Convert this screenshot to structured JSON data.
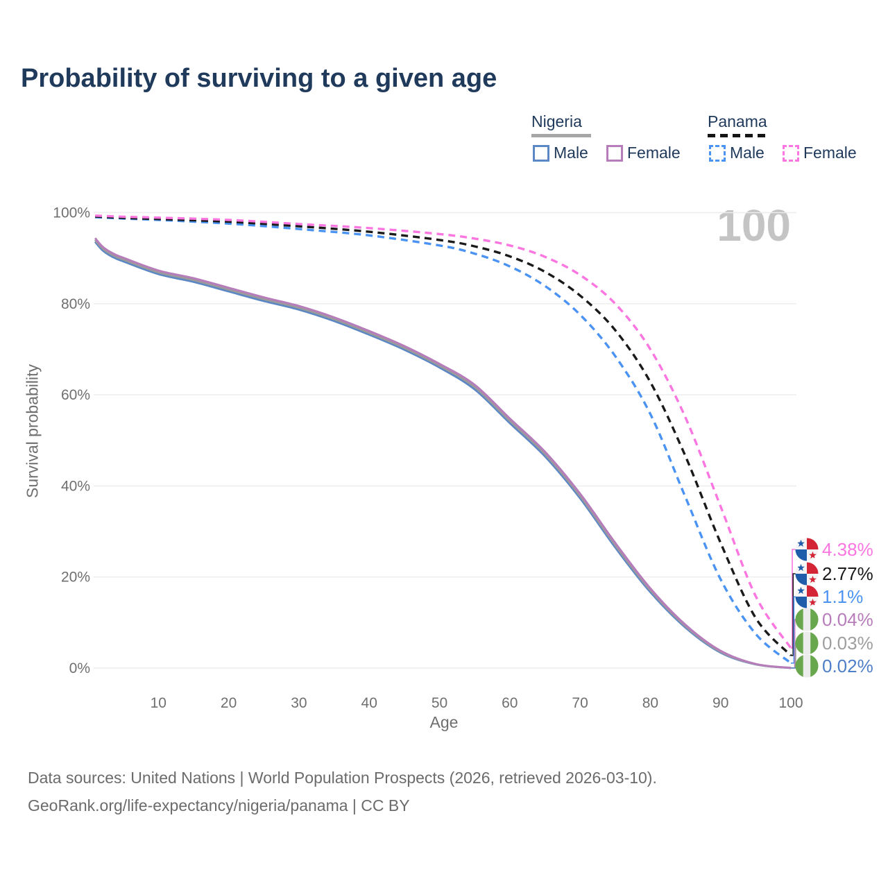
{
  "page": {
    "title": "Probability of surviving to a given age"
  },
  "legend": {
    "groups": [
      {
        "country": "Nigeria",
        "line_style": "solid",
        "items": [
          {
            "label": "Male",
            "series": "nigeria_male"
          },
          {
            "label": "Female",
            "series": "nigeria_female"
          }
        ]
      },
      {
        "country": "Panama",
        "line_style": "dashed",
        "items": [
          {
            "label": "Male",
            "series": "panama_male"
          },
          {
            "label": "Female",
            "series": "panama_female"
          }
        ]
      }
    ]
  },
  "watermark": "100",
  "axes": {
    "y_title": "Survival probability",
    "x_title": "Age",
    "y_tick_values": [
      0,
      20,
      40,
      60,
      80,
      100
    ],
    "y_tick_labels": [
      "0%",
      "20%",
      "40%",
      "60%",
      "80%",
      "100%"
    ],
    "x_tick_values": [
      10,
      20,
      30,
      40,
      50,
      60,
      70,
      80,
      90,
      100
    ]
  },
  "chart_data": {
    "type": "line",
    "title": "Probability of surviving to a given age",
    "xlabel": "Age",
    "ylabel": "Survival probability",
    "xlim": [
      1,
      100
    ],
    "ylim": [
      0,
      100
    ],
    "grid": "horizontal",
    "series": [
      {
        "id": "panama_female",
        "country": "Panama",
        "sex": "Female",
        "dash": "dashed",
        "color": "#fb76e0",
        "x": [
          1,
          5,
          10,
          20,
          30,
          40,
          50,
          55,
          60,
          65,
          70,
          75,
          80,
          85,
          90,
          95,
          100
        ],
        "values": [
          99.35,
          99.1,
          98.9,
          98.4,
          97.5,
          96.6,
          95.3,
          94.3,
          92.8,
          90.3,
          86.3,
          80.0,
          70.0,
          55.0,
          35.5,
          15.8,
          4.38
        ]
      },
      {
        "id": "panama_both",
        "country": "Panama",
        "sex": "Both sexes",
        "dash": "dashed",
        "color": "#1a1a1a",
        "x": [
          1,
          5,
          10,
          20,
          30,
          40,
          50,
          55,
          60,
          65,
          70,
          75,
          80,
          85,
          90,
          95,
          100
        ],
        "values": [
          99.15,
          98.85,
          98.6,
          98.0,
          97.0,
          95.8,
          94.0,
          92.6,
          90.4,
          87.0,
          81.8,
          74.2,
          62.8,
          46.5,
          27.5,
          11.0,
          2.77
        ]
      },
      {
        "id": "panama_male",
        "country": "Panama",
        "sex": "Male",
        "dash": "dashed",
        "color": "#4b93f3",
        "x": [
          1,
          5,
          10,
          20,
          30,
          40,
          50,
          55,
          60,
          65,
          70,
          75,
          80,
          85,
          90,
          95,
          100
        ],
        "values": [
          99.0,
          98.7,
          98.4,
          97.6,
          96.4,
          95.0,
          92.8,
          91.0,
          88.2,
          83.9,
          77.6,
          68.5,
          55.8,
          37.5,
          19.5,
          7.5,
          1.1
        ]
      },
      {
        "id": "nigeria_female",
        "country": "Nigeria",
        "sex": "Female",
        "dash": "solid",
        "color": "#b77cba",
        "x": [
          1,
          2,
          3,
          4,
          5,
          10,
          15,
          20,
          25,
          30,
          35,
          40,
          45,
          50,
          55,
          60,
          65,
          70,
          75,
          80,
          85,
          90,
          95,
          100
        ],
        "values": [
          94.4,
          92.6,
          91.5,
          90.7,
          90.1,
          87.3,
          85.6,
          83.5,
          81.4,
          79.5,
          77.0,
          74.0,
          70.7,
          66.8,
          62.2,
          54.8,
          47.5,
          38.3,
          27.5,
          17.5,
          9.5,
          3.8,
          0.9,
          0.04
        ]
      },
      {
        "id": "nigeria_both",
        "country": "Nigeria",
        "sex": "Both sexes",
        "dash": "solid",
        "color": "#9b9b9b",
        "x": [
          1,
          2,
          3,
          4,
          5,
          10,
          15,
          20,
          25,
          30,
          35,
          40,
          45,
          50,
          55,
          60,
          65,
          70,
          75,
          80,
          85,
          90,
          95,
          100
        ],
        "values": [
          94.0,
          92.2,
          91.1,
          90.3,
          89.7,
          86.9,
          85.2,
          83.1,
          81.0,
          79.1,
          76.6,
          73.6,
          70.3,
          66.4,
          61.7,
          54.3,
          47.0,
          37.8,
          27.0,
          17.1,
          9.2,
          3.6,
          0.85,
          0.03
        ]
      },
      {
        "id": "nigeria_male",
        "country": "Nigeria",
        "sex": "Male",
        "dash": "solid",
        "color": "#5b87c5",
        "x": [
          1,
          2,
          3,
          4,
          5,
          10,
          15,
          20,
          25,
          30,
          35,
          40,
          45,
          50,
          55,
          60,
          65,
          70,
          75,
          80,
          85,
          90,
          95,
          100
        ],
        "values": [
          93.6,
          91.8,
          90.7,
          89.9,
          89.3,
          86.5,
          84.8,
          82.7,
          80.6,
          78.7,
          76.2,
          73.2,
          69.9,
          66.0,
          61.2,
          53.8,
          46.5,
          37.3,
          26.5,
          16.7,
          8.9,
          3.4,
          0.8,
          0.02
        ]
      }
    ],
    "end_labels": [
      {
        "series": "panama_female",
        "flag": "panama",
        "value": "4.38%",
        "color": "#fb76e0"
      },
      {
        "series": "panama_both",
        "flag": "panama",
        "value": "2.77%",
        "color": "#1a1a1a"
      },
      {
        "series": "panama_male",
        "flag": "panama",
        "value": "1.1%",
        "color": "#4b93f3"
      },
      {
        "series": "nigeria_female",
        "flag": "nigeria",
        "value": "0.04%",
        "color": "#b77cba"
      },
      {
        "series": "nigeria_both",
        "flag": "nigeria",
        "value": "0.03%",
        "color": "#9e9e9e"
      },
      {
        "series": "nigeria_male",
        "flag": "nigeria",
        "value": "0.02%",
        "color": "#4f7ec9"
      }
    ]
  },
  "footer": {
    "line1": "Data sources: United Nations | World Population Prospects (2026, retrieved 2026-03-10).",
    "line2": "GeoRank.org/life-expectancy/nigeria/panama | CC BY"
  },
  "colors": {
    "title": "#203a5c",
    "legend_text": "#203a5c",
    "nigeria_underline": "#a6a6a6",
    "panama_underline": "#151515",
    "axis_text": "#6f6f6f",
    "grid": "#ececec",
    "watermark": "#c4c4c4",
    "footer": "#6b6b6b"
  }
}
